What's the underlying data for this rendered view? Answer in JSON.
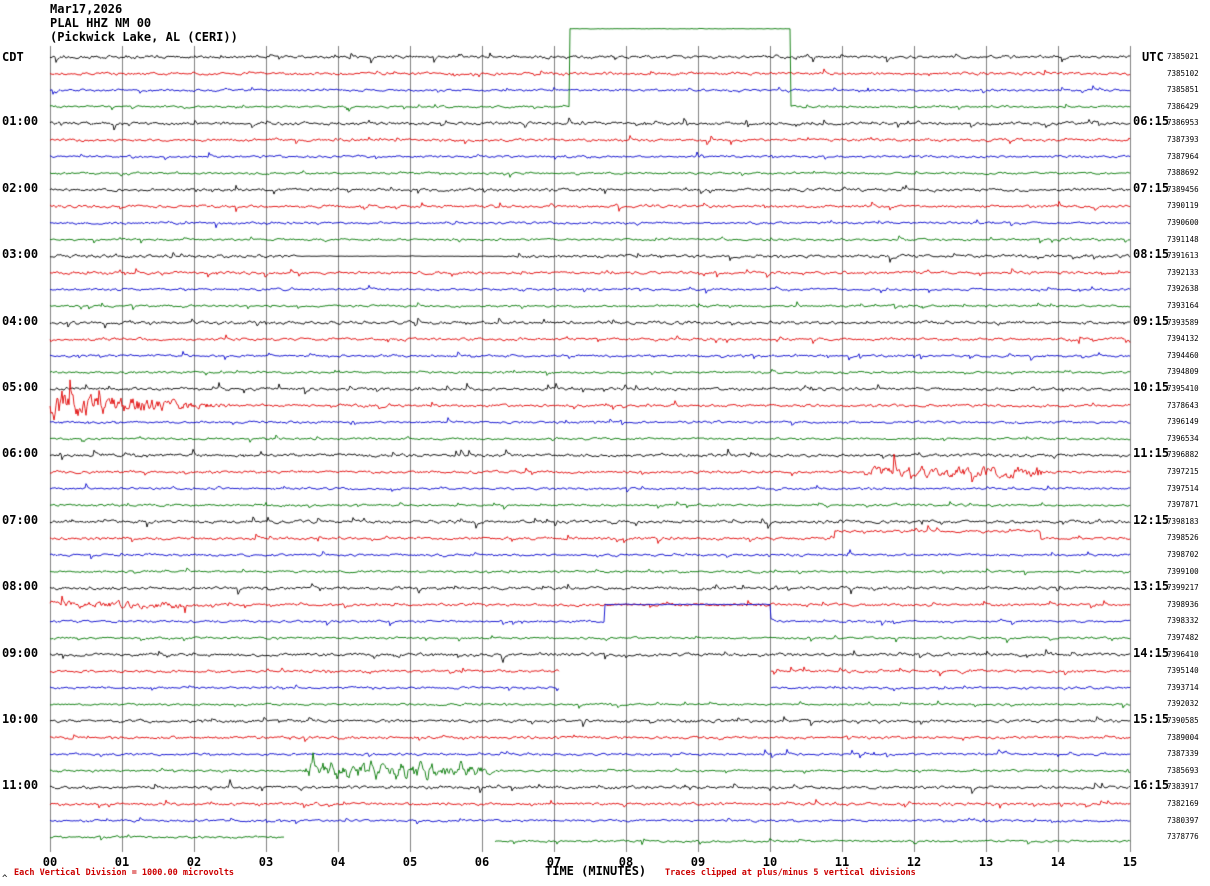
{
  "header": {
    "date": "Mar17,2026",
    "station": "PLAL HHZ NM 00",
    "location": "(Pickwick Lake, AL (CERI))"
  },
  "footer": {
    "left": "Each Vertical Division = 1000.00 microvolts",
    "center": "TIME (MINUTES)",
    "right": "Traces clipped at plus/minus 5 vertical divisions",
    "corner_mark": "^"
  },
  "chart_data": {
    "type": "line",
    "title": "PLAL HHZ NM 00 helicorder (webicorder) record, Mar17,2026, Pickwick Lake AL (CERI)",
    "data_note": "48 quarter-hour seismic trace rows of continuous noise; individual waveform samples are not legible from the image. Rows hold color, hour labels, per-row counter numbers, and visible anomalies as events (minutes).",
    "x_axis": {
      "label": "TIME (MINUTES)",
      "tick_labels": [
        "00",
        "01",
        "02",
        "03",
        "04",
        "05",
        "06",
        "07",
        "08",
        "09",
        "10",
        "11",
        "12",
        "13",
        "14",
        "15"
      ],
      "range_minutes": [
        0,
        15
      ],
      "grid": true
    },
    "left_axis": {
      "label": "CDT"
    },
    "right_axis": {
      "label": "UTC"
    },
    "trace_color_cycle": [
      "black",
      "red",
      "blue",
      "green"
    ],
    "colors": {
      "black": "#000000",
      "red": "#e00000",
      "blue": "#0000cc",
      "green": "#007700",
      "grid": "#808080",
      "footer_red": "#cc0000"
    },
    "rows": [
      {
        "color": "black",
        "seq": "7385021"
      },
      {
        "color": "red",
        "seq": "7385102"
      },
      {
        "color": "blue",
        "seq": "7385851"
      },
      {
        "color": "green",
        "seq": "7386429",
        "events": [
          {
            "type": "step",
            "start": 7.22,
            "end": 10.28,
            "offset": -78,
            "amp": 0.25
          }
        ]
      },
      {
        "color": "black",
        "seq": "7386953",
        "hour_left": "01:00",
        "hour_right": "06:15"
      },
      {
        "color": "red",
        "seq": "7387393"
      },
      {
        "color": "blue",
        "seq": "7387964"
      },
      {
        "color": "green",
        "seq": "7388692"
      },
      {
        "color": "black",
        "seq": "7389456",
        "hour_left": "02:00",
        "hour_right": "07:15"
      },
      {
        "color": "red",
        "seq": "7390119"
      },
      {
        "color": "blue",
        "seq": "7390600"
      },
      {
        "color": "green",
        "seq": "7391148"
      },
      {
        "color": "black",
        "seq": "7391613",
        "hour_left": "03:00",
        "hour_right": "08:15",
        "events": [
          {
            "type": "quiet",
            "start": 3.4,
            "end": 6.3
          }
        ]
      },
      {
        "color": "red",
        "seq": "7392133"
      },
      {
        "color": "blue",
        "seq": "7392638"
      },
      {
        "color": "green",
        "seq": "7393164"
      },
      {
        "color": "black",
        "seq": "7393589",
        "hour_left": "04:00",
        "hour_right": "09:15"
      },
      {
        "color": "red",
        "seq": "7394132"
      },
      {
        "color": "blue",
        "seq": "7394460"
      },
      {
        "color": "green",
        "seq": "7394809"
      },
      {
        "color": "black",
        "seq": "7395410",
        "hour_left": "05:00",
        "hour_right": "10:15"
      },
      {
        "color": "red",
        "seq": "7378643",
        "events": [
          {
            "type": "burst",
            "start": 0,
            "end": 2.6,
            "amp": 9,
            "decay": true
          }
        ]
      },
      {
        "color": "blue",
        "seq": "7396149"
      },
      {
        "color": "green",
        "seq": "7396534"
      },
      {
        "color": "black",
        "seq": "7396882",
        "hour_left": "06:00",
        "hour_right": "11:15"
      },
      {
        "color": "red",
        "seq": "7397215",
        "events": [
          {
            "type": "burst",
            "start": 11.3,
            "end": 13.8,
            "amp": 3
          }
        ]
      },
      {
        "color": "blue",
        "seq": "7397514"
      },
      {
        "color": "green",
        "seq": "7397871"
      },
      {
        "color": "black",
        "seq": "7398183",
        "hour_left": "07:00",
        "hour_right": "12:15"
      },
      {
        "color": "red",
        "seq": "7398526",
        "events": [
          {
            "type": "step",
            "start": 10.9,
            "end": 13.75,
            "offset": -7
          }
        ]
      },
      {
        "color": "blue",
        "seq": "7398702"
      },
      {
        "color": "green",
        "seq": "7399100"
      },
      {
        "color": "black",
        "seq": "7399217",
        "hour_left": "08:00",
        "hour_right": "13:15"
      },
      {
        "color": "red",
        "seq": "7398936",
        "events": [
          {
            "type": "burst",
            "start": 0,
            "end": 1.9,
            "amp": 1.5
          }
        ]
      },
      {
        "color": "blue",
        "seq": "7398332",
        "events": [
          {
            "type": "step",
            "start": 7.7,
            "end": 10.0,
            "offset": -17,
            "amp": 0.4
          }
        ]
      },
      {
        "color": "green",
        "seq": "7397482"
      },
      {
        "color": "black",
        "seq": "7396410",
        "hour_left": "09:00",
        "hour_right": "14:15"
      },
      {
        "color": "red",
        "seq": "7395140",
        "events": [
          {
            "type": "gap",
            "start": 7.08,
            "end": 10.0
          }
        ]
      },
      {
        "color": "blue",
        "seq": "7393714",
        "events": [
          {
            "type": "gap",
            "start": 7.08,
            "end": 10.0
          }
        ]
      },
      {
        "color": "green",
        "seq": "7392032"
      },
      {
        "color": "black",
        "seq": "7390585",
        "hour_left": "10:00",
        "hour_right": "15:15"
      },
      {
        "color": "red",
        "seq": "7389004"
      },
      {
        "color": "blue",
        "seq": "7387339"
      },
      {
        "color": "green",
        "seq": "7385693",
        "events": [
          {
            "type": "burst",
            "start": 3.5,
            "end": 6.1,
            "amp": 5,
            "lowfreq": true
          }
        ]
      },
      {
        "color": "black",
        "seq": "7383917",
        "hour_left": "11:00",
        "hour_right": "16:15"
      },
      {
        "color": "red",
        "seq": "7382169"
      },
      {
        "color": "blue",
        "seq": "7380397"
      },
      {
        "color": "green",
        "seq": "7378776",
        "events": [
          {
            "type": "gap",
            "start": 3.26,
            "end": 6.18
          },
          {
            "type": "step",
            "start": 6.18,
            "end": 15,
            "offset": 4
          }
        ]
      }
    ]
  }
}
